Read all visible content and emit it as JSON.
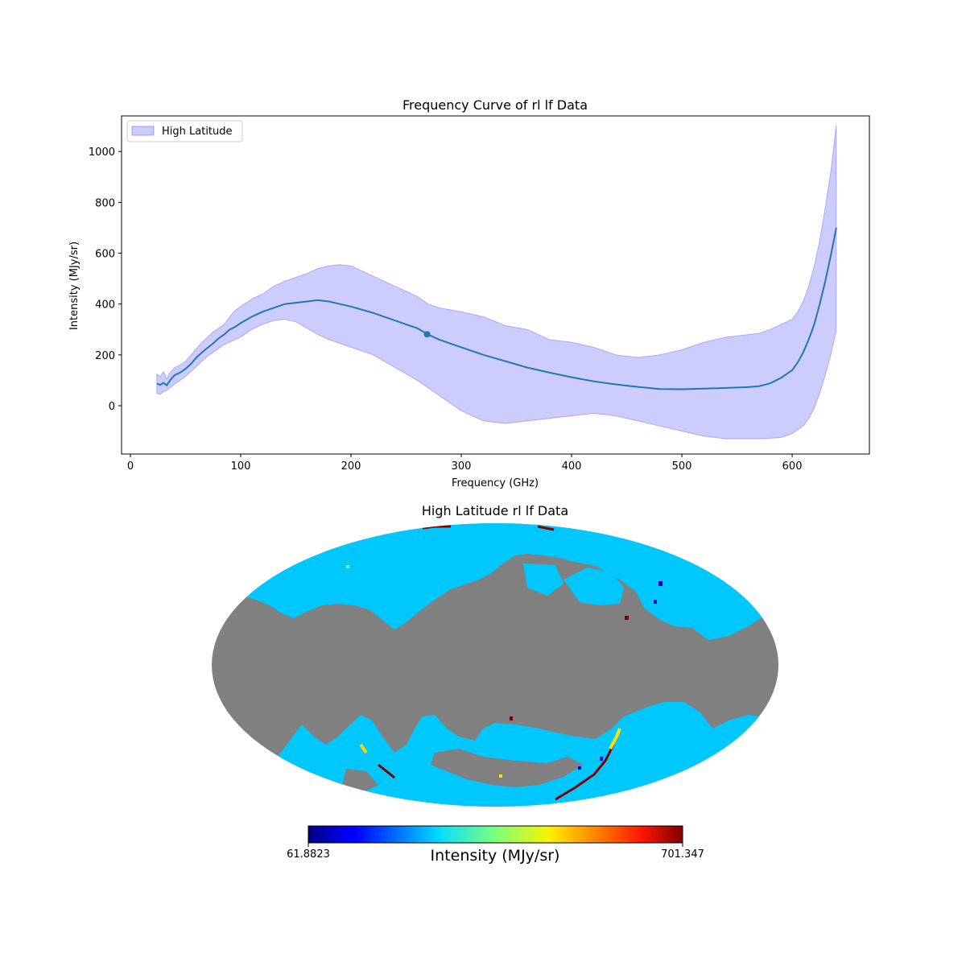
{
  "chart_data": [
    {
      "type": "line",
      "title": "Frequency Curve of rl lf Data",
      "xlabel": "Frequency (GHz)",
      "ylabel": "Intensity (MJy/sr)",
      "xlim": [
        -8,
        670
      ],
      "ylim": [
        -190,
        1140
      ],
      "xticks": [
        0,
        100,
        200,
        300,
        400,
        500,
        600
      ],
      "yticks": [
        0,
        200,
        400,
        600,
        800,
        1000
      ],
      "legend": {
        "placement": "top-left",
        "entries": [
          "High Latitude"
        ]
      },
      "grid": false,
      "colors": {
        "line": "#1f77b4",
        "band": "#0000ff"
      },
      "series": [
        {
          "kind": "line",
          "x": [
            24,
            27,
            30,
            33,
            36,
            40,
            45,
            50,
            55,
            60,
            65,
            70,
            75,
            80,
            85,
            90,
            95,
            100,
            110,
            120,
            130,
            140,
            150,
            160,
            170,
            180,
            190,
            200,
            220,
            240,
            260,
            270,
            280,
            300,
            320,
            340,
            360,
            380,
            400,
            420,
            440,
            460,
            480,
            500,
            520,
            540,
            560,
            570,
            580,
            590,
            600,
            605,
            610,
            615,
            620,
            625,
            630,
            635,
            640
          ],
          "values": [
            87,
            82,
            90,
            80,
            100,
            120,
            130,
            145,
            165,
            190,
            210,
            228,
            245,
            265,
            280,
            300,
            310,
            325,
            350,
            370,
            385,
            400,
            405,
            410,
            415,
            410,
            400,
            390,
            365,
            335,
            305,
            280,
            260,
            230,
            200,
            175,
            150,
            130,
            112,
            96,
            84,
            74,
            66,
            65,
            67,
            70,
            73,
            77,
            88,
            110,
            140,
            170,
            210,
            260,
            320,
            400,
            490,
            590,
            700
          ]
        },
        {
          "kind": "band",
          "name": "High Latitude",
          "x": [
            24,
            27,
            30,
            33,
            36,
            40,
            45,
            50,
            55,
            60,
            65,
            70,
            75,
            80,
            85,
            90,
            95,
            100,
            110,
            120,
            130,
            140,
            150,
            160,
            170,
            180,
            190,
            200,
            220,
            240,
            260,
            270,
            280,
            300,
            320,
            340,
            360,
            380,
            400,
            420,
            440,
            460,
            480,
            500,
            520,
            540,
            560,
            570,
            580,
            590,
            600,
            605,
            610,
            615,
            620,
            625,
            630,
            635,
            640
          ],
          "upper": [
            125,
            115,
            135,
            105,
            130,
            150,
            160,
            175,
            200,
            225,
            250,
            270,
            290,
            305,
            320,
            350,
            375,
            390,
            420,
            440,
            470,
            490,
            505,
            520,
            540,
            550,
            555,
            550,
            510,
            470,
            430,
            400,
            385,
            370,
            350,
            315,
            300,
            260,
            250,
            230,
            200,
            190,
            200,
            220,
            250,
            270,
            280,
            285,
            300,
            320,
            340,
            370,
            410,
            470,
            550,
            650,
            780,
            920,
            1105
          ],
          "lower": [
            48,
            45,
            55,
            60,
            70,
            85,
            100,
            115,
            135,
            155,
            175,
            195,
            210,
            225,
            240,
            250,
            260,
            270,
            300,
            320,
            335,
            340,
            330,
            305,
            280,
            260,
            245,
            230,
            200,
            150,
            100,
            70,
            40,
            -20,
            -60,
            -70,
            -60,
            -50,
            -40,
            -30,
            -40,
            -60,
            -80,
            -100,
            -120,
            -130,
            -130,
            -130,
            -128,
            -125,
            -110,
            -95,
            -80,
            -50,
            -10,
            50,
            120,
            200,
            295
          ]
        },
        {
          "kind": "marker",
          "x": [
            269
          ],
          "values": [
            281
          ]
        }
      ]
    },
    {
      "type": "heatmap",
      "title": "High Latitude rl lf Data",
      "projection": "mollweide",
      "colormap": "jet",
      "masked_color": "#808080",
      "colorbar": {
        "label": "Intensity (MJy/sr)",
        "min_label": "61.8823",
        "max_label": "701.347",
        "min": 61.8823,
        "max": 701.347
      }
    }
  ]
}
